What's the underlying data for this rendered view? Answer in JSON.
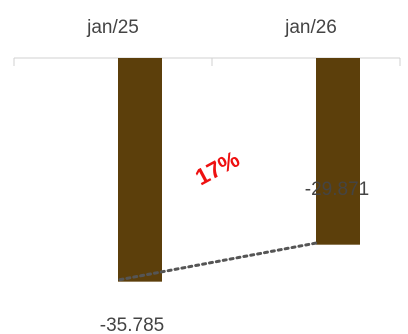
{
  "chart_data": {
    "type": "bar",
    "categories": [
      "jan/25",
      "jan/26"
    ],
    "values": [
      -35785,
      -29871
    ],
    "value_labels": [
      "-35.785",
      "-29.871"
    ],
    "ylim": [
      -40000,
      0
    ],
    "change_label": "17%",
    "bar_color": "#5c3f0b",
    "change_color": "#ee1111",
    "trend_line_color": "#555555",
    "axis_color": "#d0d0d0",
    "category_axis_position": "top",
    "grid": false,
    "legend": "none"
  }
}
